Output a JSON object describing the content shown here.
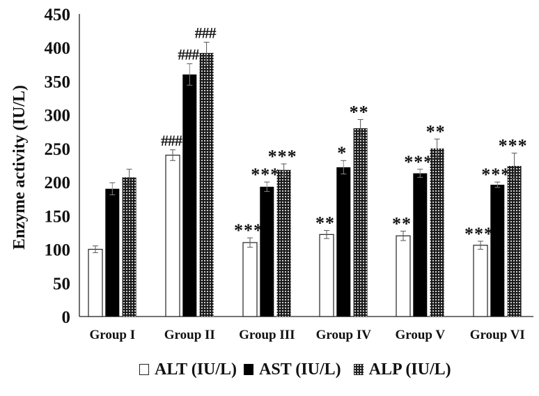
{
  "chart_data": {
    "type": "bar",
    "title": "",
    "xlabel": "",
    "ylabel": "Enzyme activity (IU/L)",
    "ylim": [
      0,
      450
    ],
    "yticks": [
      0,
      50,
      100,
      150,
      200,
      250,
      300,
      350,
      400,
      450
    ],
    "grid": false,
    "legend_position": "bottom",
    "categories": [
      "Group I",
      "Group II",
      "Group III",
      "Group IV",
      "Group V",
      "Group VI"
    ],
    "series": [
      {
        "name": "ALT (IU/L)",
        "fill": "white",
        "values": [
          100,
          240,
          110,
          122,
          120,
          106
        ],
        "errors": [
          5,
          8,
          7,
          6,
          7,
          6
        ],
        "annotations": [
          "",
          "###",
          "***",
          "**",
          "**",
          "***"
        ]
      },
      {
        "name": "AST (IU/L)",
        "fill": "black",
        "values": [
          190,
          360,
          193,
          222,
          213,
          196
        ],
        "errors": [
          9,
          16,
          7,
          10,
          6,
          4
        ],
        "annotations": [
          "",
          "###",
          "***",
          "*",
          "***",
          "***"
        ]
      },
      {
        "name": "ALP (IU/L)",
        "fill": "dotted",
        "values": [
          207,
          392,
          218,
          280,
          250,
          224
        ],
        "errors": [
          12,
          16,
          9,
          13,
          14,
          19
        ],
        "annotations": [
          "",
          "###",
          "***",
          "**",
          "**",
          "***"
        ]
      }
    ]
  },
  "legend": {
    "items": [
      {
        "label": "ALT (IU/L)"
      },
      {
        "label": "AST (IU/L)"
      },
      {
        "label": "ALP (IU/L)"
      }
    ]
  }
}
